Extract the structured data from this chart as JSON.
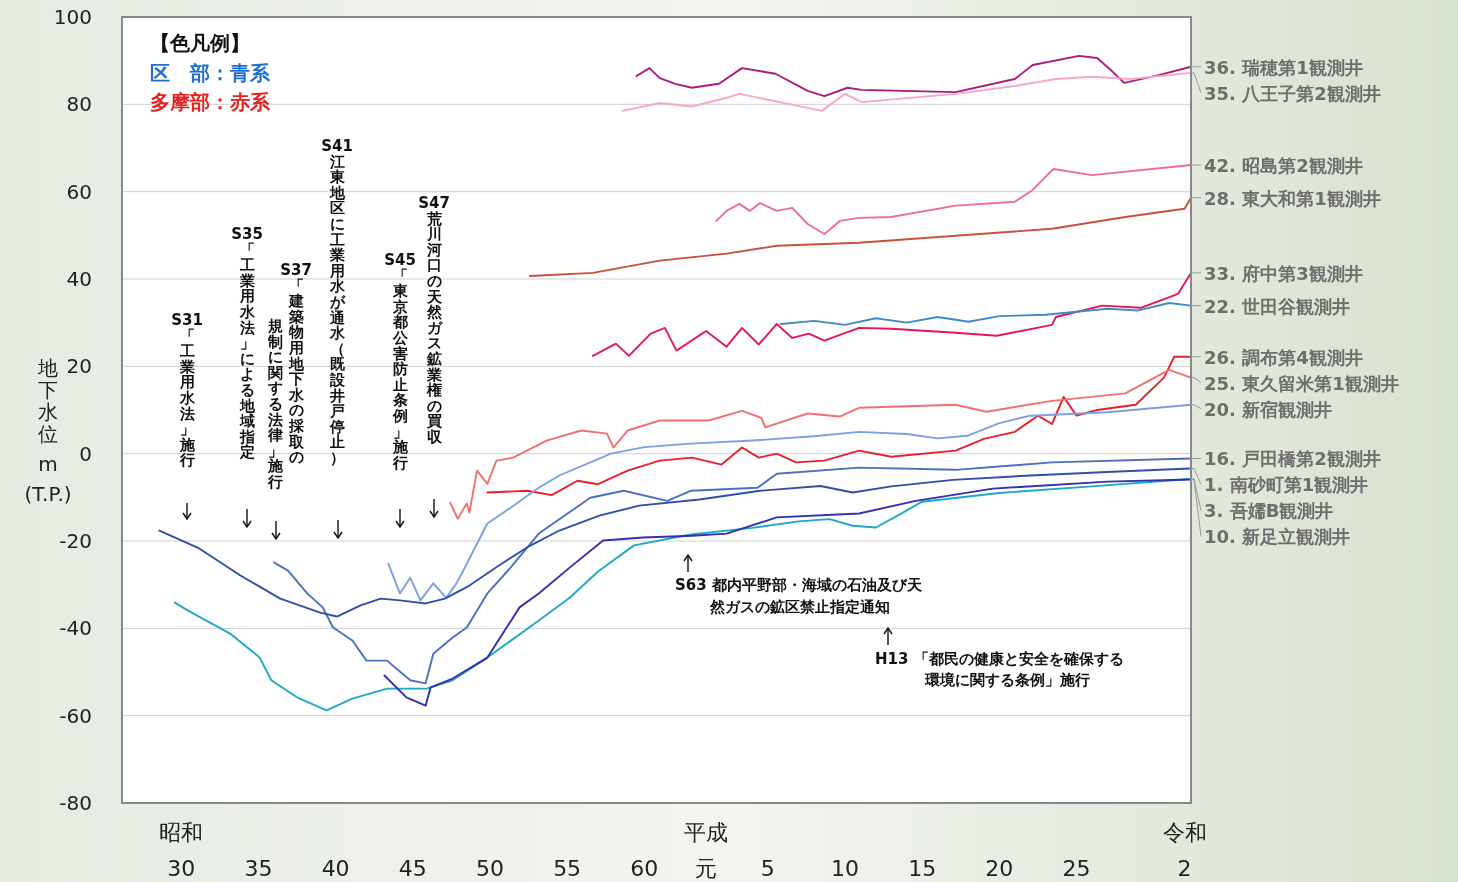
{
  "chart_data": {
    "type": "line",
    "ylabel": "地下水位 m (T.P.)",
    "xlim": [
      "1951-03",
      "2020-06"
    ],
    "xticks": [
      {
        "value": "1955",
        "label": "昭和30"
      },
      {
        "value": "1960",
        "label": "35"
      },
      {
        "value": "1965",
        "label": "40"
      },
      {
        "value": "1970",
        "label": "45"
      },
      {
        "value": "1975",
        "label": "50"
      },
      {
        "value": "1980",
        "label": "55"
      },
      {
        "value": "1985",
        "label": "60"
      },
      {
        "value": "1989",
        "label": "平成元"
      },
      {
        "value": "1993",
        "label": "5"
      },
      {
        "value": "1998",
        "label": "10"
      },
      {
        "value": "2003",
        "label": "15"
      },
      {
        "value": "2008",
        "label": "20"
      },
      {
        "value": "2013",
        "label": "25"
      },
      {
        "value": "2020",
        "label": "令和2"
      }
    ],
    "ylim": [
      -80,
      100
    ],
    "yticks": [
      -80,
      -60,
      -40,
      -20,
      0,
      20,
      40,
      60,
      80,
      100
    ],
    "grid": "y",
    "line_style": "solid",
    "annotations": [
      "【色凡例】",
      "区　部：青系",
      "多摩部：赤系",
      "S31「工業用水法」施行",
      "S35「工業用水法」による地域指定",
      "S37「建築物用地下水の採取の",
      "規制に関する法律」施行",
      "S41江東地区に工業用水が通水（既設井戸停止）",
      "S45「東京都公害防止条例」施行",
      "S47荒川河口の天然ガス鉱業権の買収",
      "S63 都内平野部・海域の石油及び天然ガスの鉱区禁止指定通知",
      "H13 「都民の健康と安全を確保する環境に関する条例」施行"
    ],
    "series": [
      {
        "name": "36. 瑞穂第1観測井",
        "color": "#b01880",
        "x": [
          "1984-07",
          "1985-05",
          "1986-01",
          "1987-01",
          "1988-02",
          "1989-11",
          "1991-05",
          "1993-07",
          "1995-08",
          "1996-09",
          "1998-03",
          "1999-02",
          "2005-03",
          "2009-01",
          "2010-03",
          "2013-03",
          "2014-05",
          "2015-05",
          "2016-02",
          "2018-05",
          "2020-06"
        ],
        "values": [
          86.5,
          88.3,
          86,
          84.7,
          83.8,
          84.7,
          88.3,
          87,
          83.1,
          81.9,
          83.8,
          83.3,
          82.8,
          85.8,
          89,
          91.1,
          90.6,
          87.5,
          84.9,
          86.7,
          88.6
        ]
      },
      {
        "name": "35. 八王子第2観測井",
        "color": "#f4a8c8",
        "x": [
          "1983-08",
          "1986-01",
          "1988-02",
          "1990-05",
          "1991-03",
          "1995-08",
          "1996-07",
          "1998-01",
          "1999-02",
          "2005-03",
          "2009-01",
          "2011-09",
          "2014-01",
          "2016-07",
          "2020-06"
        ],
        "values": [
          78.5,
          80.3,
          79.5,
          81.5,
          82.4,
          79.2,
          78.5,
          82.4,
          80.5,
          82.4,
          84.2,
          85.8,
          86.3,
          85.8,
          87.2
        ]
      },
      {
        "name": "42. 昭島第2観測井",
        "color": "#f06aa0",
        "x": [
          "1989-09",
          "1990-05",
          "1991-03",
          "1991-11",
          "1992-07",
          "1993-08",
          "1994-08",
          "1995-08",
          "1996-09",
          "1997-09",
          "1998-12",
          "2001-01",
          "2005-03",
          "2009-01",
          "2010-03",
          "2011-07",
          "2014-01",
          "2020-06"
        ],
        "values": [
          53.3,
          55.6,
          57.2,
          55.6,
          57.4,
          55.6,
          56.3,
          52.6,
          50.3,
          53.3,
          54,
          54.2,
          56.8,
          57.7,
          60.4,
          65.2,
          63.8,
          66.1
        ]
      },
      {
        "name": "28. 東大和第1観測井",
        "color": "#c8503c",
        "x": [
          "1977-08",
          "1981-09",
          "1986-01",
          "1990-05",
          "1993-08",
          "1998-12",
          "2005-03",
          "2011-06",
          "2016-03",
          "2020-01",
          "2020-06"
        ],
        "values": [
          40.7,
          41.4,
          44.2,
          45.8,
          47.6,
          48.3,
          49.9,
          51.5,
          54.2,
          56.1,
          58.6
        ]
      },
      {
        "name": "33. 府中第3観測井",
        "color": "#e8145a",
        "x": [
          "1981-09",
          "1983-03",
          "1984-01",
          "1985-06",
          "1986-05",
          "1987-02",
          "1989-01",
          "1990-05",
          "1991-05",
          "1992-06",
          "1993-08",
          "1994-08",
          "1995-09",
          "1996-09",
          "1998-12",
          "2001-01",
          "2005-03",
          "2007-11",
          "2011-06",
          "2011-09",
          "2014-09",
          "2017-03",
          "2019-08",
          "2020-06"
        ],
        "values": [
          22.4,
          25.2,
          22.4,
          27.5,
          28.8,
          23.6,
          28.1,
          24.5,
          28.8,
          25,
          29.7,
          26.5,
          27.5,
          25.9,
          28.8,
          28.6,
          27.7,
          27,
          29.5,
          31.3,
          33.9,
          33.4,
          36.6,
          41.4
        ]
      },
      {
        "name": "22. 世田谷観測井",
        "color": "#3c8cc8",
        "x": [
          "1993-11",
          "1996-01",
          "1998-01",
          "2000-01",
          "2002-01",
          "2004-01",
          "2006-01",
          "2008-01",
          "2011-01",
          "2013-01",
          "2015-01",
          "2017-01",
          "2019-01",
          "2020-06"
        ],
        "values": [
          29.7,
          30.4,
          29.5,
          31,
          30,
          31.3,
          30.2,
          31.5,
          31.8,
          32.5,
          33.2,
          32.8,
          34.5,
          33.9
        ]
      },
      {
        "name": "26. 調布第4観測井",
        "color": "#e8202a",
        "x": [
          "1974-11",
          "1977-06",
          "1979-01",
          "1980-09",
          "1982-01",
          "1983-12",
          "1986-01",
          "1988-02",
          "1990-01",
          "1991-05",
          "1992-06",
          "1993-08",
          "1994-11",
          "1996-09",
          "1998-12",
          "2001-01",
          "2005-03",
          "2007-01",
          "2009-01",
          "2010-07",
          "2011-06",
          "2012-03",
          "2013-01",
          "2014-05",
          "2016-11",
          "2018-09",
          "2019-05",
          "2020-06"
        ],
        "values": [
          -8.9,
          -8.5,
          -9.5,
          -6.2,
          -7,
          -3.9,
          -1.6,
          -0.9,
          -2.5,
          1.4,
          -0.9,
          0,
          -2,
          -1.6,
          0.7,
          -0.7,
          0.7,
          3.4,
          5,
          8.7,
          6.8,
          13,
          8.7,
          10,
          11.2,
          17.4,
          22.2,
          22.2
        ]
      },
      {
        "name": "25. 東久留米第1観測井",
        "color": "#f07070",
        "x": [
          "1972-06",
          "1972-12",
          "1973-07",
          "1973-09",
          "1974-03",
          "1974-11",
          "1975-06",
          "1976-07",
          "1978-09",
          "1980-12",
          "1982-08",
          "1983-01",
          "1983-12",
          "1986-01",
          "1989-03",
          "1991-05",
          "1992-08",
          "1992-11",
          "1995-08",
          "1997-09",
          "1998-12",
          "2005-03",
          "2007-03",
          "2011-06",
          "2016-03",
          "2019-01",
          "2020-06"
        ],
        "values": [
          -11.2,
          -14.9,
          -11.4,
          -13.5,
          -3.9,
          -6.9,
          -1.6,
          -0.9,
          3,
          5.3,
          4.6,
          1.4,
          5.3,
          7.6,
          7.6,
          9.8,
          8.2,
          6,
          9.2,
          8.5,
          10.5,
          11.2,
          9.6,
          12.1,
          13.8,
          19.2,
          17.4
        ]
      },
      {
        "name": "20. 新宿観測井",
        "color": "#7aa0e0",
        "x": [
          "1968-06",
          "1969-03",
          "1969-11",
          "1970-07",
          "1971-05",
          "1972-03",
          "1972-11",
          "1973-03",
          "1974-11",
          "1976-05",
          "1978-03",
          "1979-07",
          "1982-11",
          "1985-01",
          "1988-01",
          "1992-01",
          "1996-01",
          "1998-12",
          "2002-01",
          "2004-01",
          "2005-12",
          "2008-01",
          "2010-01",
          "2015-01",
          "2020-06"
        ],
        "values": [
          -25.2,
          -32,
          -28.4,
          -33.6,
          -29.7,
          -33,
          -29.7,
          -27.5,
          -16,
          -12.4,
          -7.8,
          -5,
          0,
          1.5,
          2.3,
          3,
          4,
          5,
          4.5,
          3.5,
          4.1,
          7,
          8.7,
          9.5,
          11.2
        ]
      },
      {
        "name": "16. 戸田橋第2観測井",
        "color": "#4a70c0",
        "x": [
          "1961-01",
          "1961-12",
          "1963-03",
          "1964-03",
          "1964-11",
          "1966-02",
          "1967-01",
          "1968-05",
          "1969-11",
          "1970-11",
          "1971-05",
          "1972-08",
          "1973-07",
          "1974-11",
          "1976-05",
          "1978-03",
          "1981-07",
          "1983-09",
          "1986-07",
          "1988-01",
          "1992-05",
          "1993-08",
          "1998-12",
          "2005-03",
          "2011-06",
          "2020-06"
        ],
        "values": [
          -24.9,
          -26.8,
          -32,
          -35.2,
          -39.8,
          -42.8,
          -47.4,
          -47.4,
          -51.9,
          -52.6,
          -45.8,
          -42.1,
          -39.8,
          -32,
          -26.1,
          -18.3,
          -10.1,
          -8.5,
          -10.8,
          -8.5,
          -7.8,
          -4.6,
          -3.2,
          -3.7,
          -2,
          -1.1
        ]
      },
      {
        "name": "1. 南砂町第1観測井",
        "color": "#2f50a8",
        "x": [
          "1953-08",
          "1956-03",
          "1958-11",
          "1961-06",
          "1964-01",
          "1965-02",
          "1966-08",
          "1967-12",
          "1969-03",
          "1970-11",
          "1972-02",
          "1973-09",
          "1975-08",
          "1977-08",
          "1979-07",
          "1982-02",
          "1984-09",
          "1988-08",
          "1992-07",
          "1996-06",
          "1998-07",
          "2001-01",
          "2005-01",
          "2010-01",
          "2015-01",
          "2020-05"
        ],
        "values": [
          -17.6,
          -21.7,
          -27.9,
          -33.2,
          -36.4,
          -37.3,
          -34.8,
          -33.2,
          -33.6,
          -34.3,
          -33.2,
          -30.2,
          -25.6,
          -21.1,
          -17.6,
          -14.2,
          -11.9,
          -10.5,
          -8.5,
          -7.4,
          -8.9,
          -7.5,
          -6,
          -5,
          -4.2,
          -3.4
        ]
      },
      {
        "name": "3. 吾嬬B観測井",
        "color": "#20a8c8",
        "x": [
          "1954-08",
          "1955-06",
          "1958-03",
          "1960-02",
          "1960-11",
          "1962-07",
          "1964-06",
          "1966-02",
          "1968-05",
          "1970-12",
          "1972-08",
          "1974-11",
          "1978-03",
          "1980-03",
          "1982-01",
          "1984-05",
          "1988-01",
          "1992-01",
          "1995-01",
          "1997-01",
          "1998-07",
          "2000-01",
          "2001-07",
          "2003-01",
          "2008-01",
          "2014-01",
          "2020-05"
        ],
        "values": [
          -34.1,
          -35.9,
          -41.2,
          -46.7,
          -51.9,
          -55.8,
          -58.8,
          -56.1,
          -53.8,
          -53.8,
          -51.9,
          -46.7,
          -38.2,
          -33,
          -27,
          -21,
          -18.5,
          -17,
          -15.5,
          -15,
          -16.5,
          -16.9,
          -14,
          -11,
          -9,
          -7.5,
          -5.8
        ]
      },
      {
        "name": "10. 新足立観測井",
        "color": "#3030b0",
        "x": [
          "1968-03",
          "1969-08",
          "1970-11",
          "1971-03",
          "1972-08",
          "1974-11",
          "1976-12",
          "1978-03",
          "1980-03",
          "1982-05",
          "1984-12",
          "1988-02",
          "1990-05",
          "1993-08",
          "1998-12",
          "2002-08",
          "2007-08",
          "2015-01",
          "2020-06"
        ],
        "values": [
          -50.8,
          -55.8,
          -57.7,
          -53.5,
          -51.5,
          -46.7,
          -35.2,
          -32,
          -26.1,
          -19.9,
          -19.2,
          -18.8,
          -18.3,
          -14.6,
          -13.7,
          -10.8,
          -8,
          -6.4,
          -5.9
        ]
      }
    ]
  }
}
